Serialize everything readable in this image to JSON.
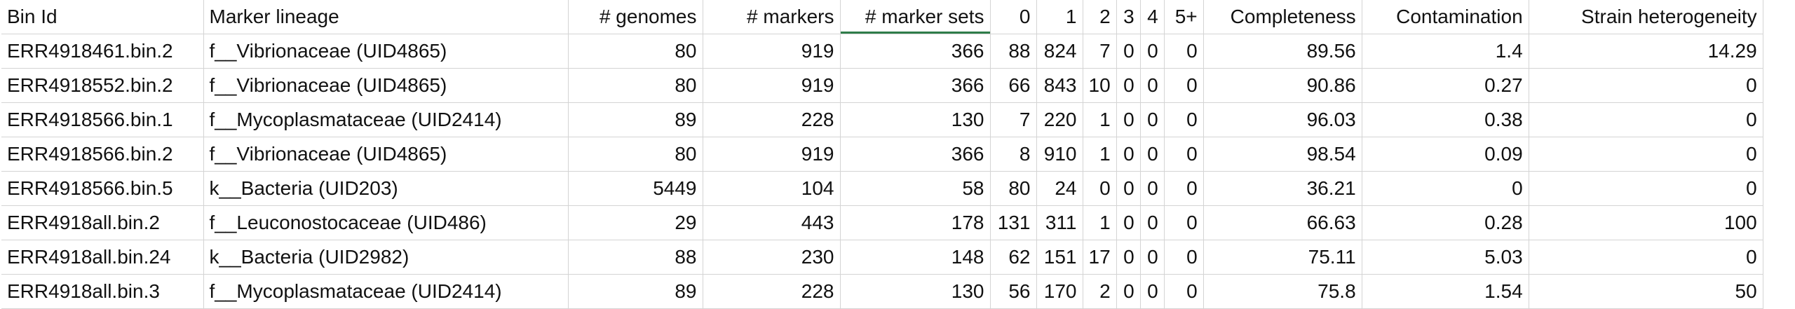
{
  "headers": [
    "Bin Id",
    "Marker lineage",
    "# genomes",
    "# markers",
    "# marker sets",
    "0",
    "1",
    "2",
    "3",
    "4",
    "5+",
    "Completeness",
    "Contamination",
    "Strain heterogeneity"
  ],
  "rows": [
    [
      "ERR4918461.bin.2",
      "f__Vibrionaceae (UID4865)",
      "80",
      "919",
      "366",
      "88",
      "824",
      "7",
      "0",
      "0",
      "0",
      "89.56",
      "1.4",
      "14.29"
    ],
    [
      "ERR4918552.bin.2",
      "f__Vibrionaceae (UID4865)",
      "80",
      "919",
      "366",
      "66",
      "843",
      "10",
      "0",
      "0",
      "0",
      "90.86",
      "0.27",
      "0"
    ],
    [
      "ERR4918566.bin.1",
      "f__Mycoplasmataceae (UID2414)",
      "89",
      "228",
      "130",
      "7",
      "220",
      "1",
      "0",
      "0",
      "0",
      "96.03",
      "0.38",
      "0"
    ],
    [
      "ERR4918566.bin.2",
      "f__Vibrionaceae (UID4865)",
      "80",
      "919",
      "366",
      "8",
      "910",
      "1",
      "0",
      "0",
      "0",
      "98.54",
      "0.09",
      "0"
    ],
    [
      "ERR4918566.bin.5",
      "k__Bacteria (UID203)",
      "5449",
      "104",
      "58",
      "80",
      "24",
      "0",
      "0",
      "0",
      "0",
      "36.21",
      "0",
      "0"
    ],
    [
      "ERR4918all.bin.2",
      "f__Leuconostocaceae (UID486)",
      "29",
      "443",
      "178",
      "131",
      "311",
      "1",
      "0",
      "0",
      "0",
      "66.63",
      "0.28",
      "100"
    ],
    [
      "ERR4918all.bin.24",
      "k__Bacteria (UID2982)",
      "88",
      "230",
      "148",
      "62",
      "151",
      "17",
      "0",
      "0",
      "0",
      "75.11",
      "5.03",
      "0"
    ],
    [
      "ERR4918all.bin.3",
      "f__Mycoplasmataceae (UID2414)",
      "89",
      "228",
      "130",
      "56",
      "170",
      "2",
      "0",
      "0",
      "0",
      "75.8",
      "1.54",
      "50"
    ]
  ],
  "colors": {
    "gridline": "#d4d4d4",
    "selected_column_marker": "#2f7d4a",
    "text": "#111111",
    "background": "#ffffff"
  }
}
